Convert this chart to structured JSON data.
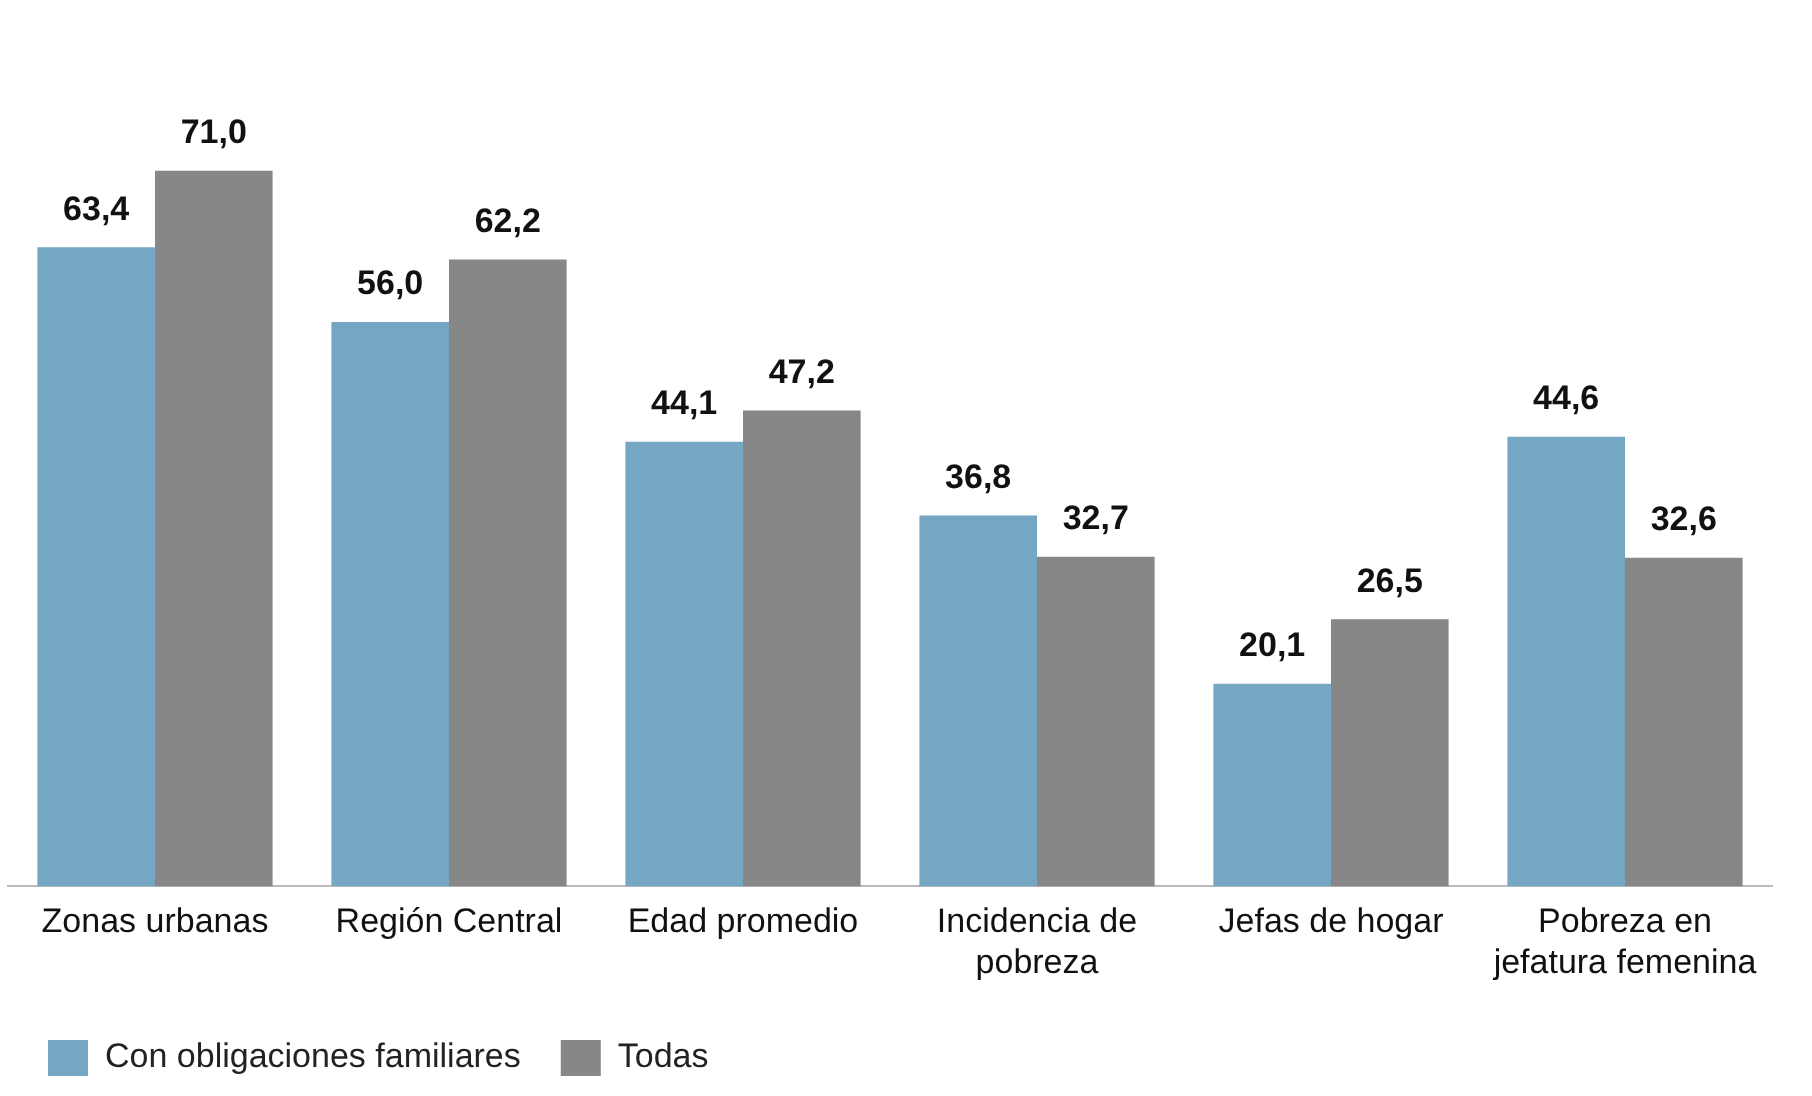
{
  "chart_data": {
    "type": "bar",
    "categories": [
      "Zonas urbanas",
      "Región Central",
      "Edad promedio",
      "Incidencia de pobreza",
      "Jefas de hogar",
      "Pobreza en jefatura femenina"
    ],
    "series": [
      {
        "name": "Con obligaciones familiares",
        "color": "#75a7c5",
        "values": [
          63.4,
          56.0,
          44.1,
          36.8,
          20.1,
          44.6
        ],
        "value_labels": [
          "63,4",
          "56,0",
          "44,1",
          "36,8",
          "20,1",
          "44,6"
        ]
      },
      {
        "name": "Todas",
        "color": "#878787",
        "values": [
          71.0,
          62.2,
          47.2,
          32.7,
          26.5,
          32.6
        ],
        "value_labels": [
          "71,0",
          "62,2",
          "47,2",
          "32,7",
          "26,5",
          "32,6"
        ]
      }
    ],
    "legend": "bottom left",
    "grid": false
  }
}
